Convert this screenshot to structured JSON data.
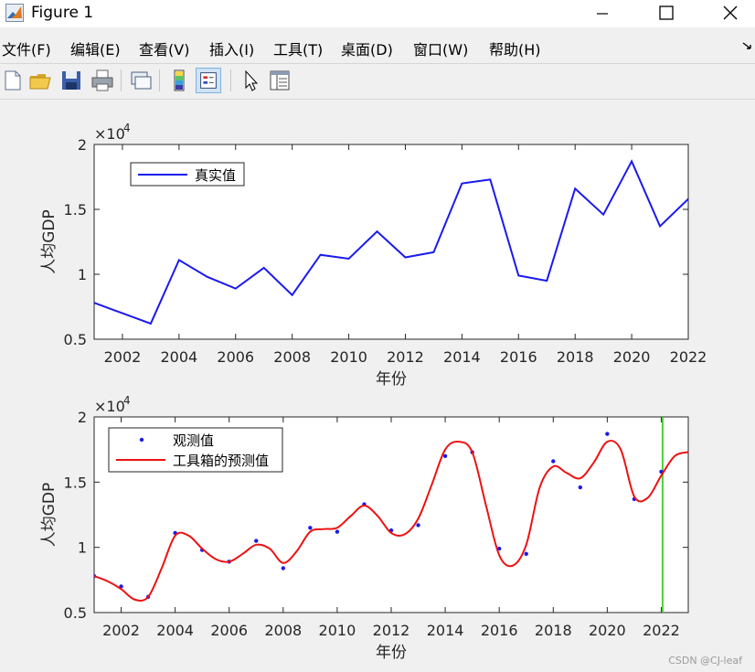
{
  "window": {
    "title": "Figure 1"
  },
  "menu": [
    "文件(F)",
    "编辑(E)",
    "查看(V)",
    "插入(I)",
    "工具(T)",
    "桌面(D)",
    "窗口(W)",
    "帮助(H)"
  ],
  "toolbar_icons": [
    "new-file-icon",
    "open-folder-icon",
    "save-icon",
    "print-icon",
    "link-icon",
    "colorbar-icon",
    "legend-icon",
    "pointer-icon",
    "property-editor-icon"
  ],
  "watermark": "CSDN @CJ-leaf",
  "chart_data": [
    {
      "type": "line",
      "xlabel": "年份",
      "ylabel": "人均GDP",
      "y_multiplier_base": "×10",
      "y_multiplier_exp": "4",
      "xlim": [
        2001,
        2022
      ],
      "ylim": [
        5000,
        20000
      ],
      "xticks": [
        2002,
        2004,
        2006,
        2008,
        2010,
        2012,
        2014,
        2016,
        2018,
        2020,
        2022
      ],
      "yticks": [
        5000,
        10000,
        15000,
        20000
      ],
      "ytick_labels": [
        "0.5",
        "1",
        "1.5",
        "2"
      ],
      "legend_position": "top-left",
      "series": [
        {
          "name": "真实值",
          "color": "#1a1aee",
          "x": [
            2001,
            2002,
            2003,
            2004,
            2005,
            2006,
            2007,
            2008,
            2009,
            2010,
            2011,
            2012,
            2013,
            2014,
            2015,
            2016,
            2017,
            2018,
            2019,
            2020,
            2021,
            2022
          ],
          "values": [
            7800,
            7000,
            6200,
            11100,
            9800,
            8900,
            10500,
            8400,
            11500,
            11200,
            13300,
            11300,
            11700,
            17000,
            17300,
            9900,
            9500,
            16600,
            14600,
            18700,
            13700,
            15800
          ]
        }
      ]
    },
    {
      "type": "line",
      "xlabel": "年份",
      "ylabel": "人均GDP",
      "y_multiplier_base": "×10",
      "y_multiplier_exp": "4",
      "xlim": [
        2001,
        2023
      ],
      "ylim": [
        5000,
        20000
      ],
      "xticks": [
        2002,
        2004,
        2006,
        2008,
        2010,
        2012,
        2014,
        2016,
        2018,
        2020,
        2022
      ],
      "yticks": [
        5000,
        10000,
        15000,
        20000
      ],
      "ytick_labels": [
        "0.5",
        "1",
        "1.5",
        "2"
      ],
      "legend_position": "top-left",
      "vline_x": 2022.05,
      "vline_color": "#4cd13a",
      "series": [
        {
          "name": "观测值",
          "kind": "points",
          "color": "#1a1aee",
          "x": [
            2001,
            2002,
            2003,
            2004,
            2005,
            2006,
            2007,
            2008,
            2009,
            2010,
            2011,
            2012,
            2013,
            2014,
            2015,
            2016,
            2017,
            2018,
            2019,
            2020,
            2021,
            2022
          ],
          "values": [
            7800,
            7000,
            6200,
            11100,
            9800,
            8900,
            10500,
            8400,
            11500,
            11200,
            13300,
            11300,
            11700,
            17000,
            17300,
            9900,
            9500,
            16600,
            14600,
            18700,
            13700,
            15800
          ]
        },
        {
          "name": "工具箱的预测值",
          "kind": "curve",
          "color": "#ee1111",
          "x": [
            2001,
            2001.5,
            2002,
            2002.5,
            2003,
            2003.5,
            2004,
            2004.5,
            2005,
            2005.5,
            2006,
            2006.5,
            2007,
            2007.5,
            2008,
            2008.5,
            2009,
            2009.5,
            2010,
            2010.5,
            2011,
            2011.5,
            2012,
            2012.5,
            2013,
            2013.5,
            2014,
            2014.5,
            2015,
            2015.5,
            2016,
            2016.5,
            2017,
            2017.5,
            2018,
            2018.5,
            2019,
            2019.5,
            2020,
            2020.5,
            2021,
            2021.5,
            2022,
            2022.5,
            2023
          ],
          "values": [
            7800,
            7400,
            6800,
            6000,
            6200,
            8400,
            10900,
            10900,
            9900,
            9100,
            8900,
            9500,
            10200,
            9900,
            8800,
            9700,
            11200,
            11400,
            11500,
            12400,
            13200,
            12400,
            11100,
            11000,
            12200,
            14800,
            17500,
            18100,
            17300,
            13300,
            9400,
            8600,
            10200,
            14600,
            16200,
            15700,
            15300,
            16500,
            18100,
            17500,
            13900,
            13800,
            15500,
            17000,
            17300
          ]
        }
      ]
    }
  ]
}
